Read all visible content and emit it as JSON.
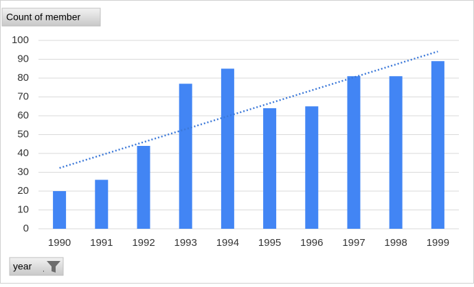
{
  "chart_data": {
    "type": "bar",
    "value_field": "Count of member",
    "axis_field": "year",
    "categories": [
      "1990",
      "1991",
      "1992",
      "1993",
      "1994",
      "1995",
      "1996",
      "1997",
      "1998",
      "1999"
    ],
    "values": [
      20,
      26,
      44,
      77,
      85,
      64,
      65,
      81,
      81,
      89
    ],
    "color": "#4285f4",
    "trendline": "linear",
    "trendline_color": "#3b78d8",
    "ylim": [
      0,
      100
    ],
    "yticks": [
      0,
      10,
      20,
      30,
      40,
      50,
      60,
      70,
      80,
      90,
      100
    ],
    "grid": true
  }
}
